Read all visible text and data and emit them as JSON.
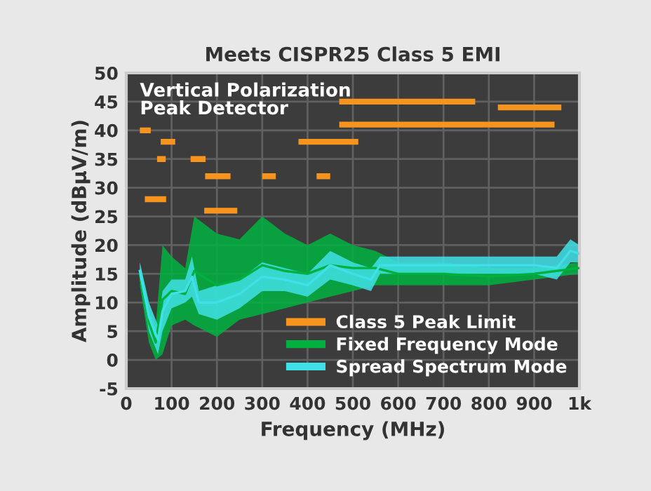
{
  "chart_data": {
    "type": "line",
    "title": "Meets CISPR25 Class 5 EMI",
    "xlabel": "Frequency (MHz)",
    "ylabel": "Amplitude (dBµV/m)",
    "annotations": [
      "Vertical Polarization\nPeak Detector"
    ],
    "xlim": [
      0,
      1000
    ],
    "ylim": [
      -5,
      50
    ],
    "xticks": [
      0,
      100,
      200,
      300,
      400,
      500,
      600,
      700,
      800,
      900,
      {
        "value": 1000,
        "label": "1k"
      }
    ],
    "yticks": [
      -5,
      0,
      5,
      10,
      15,
      20,
      25,
      30,
      35,
      40,
      45,
      50
    ],
    "grid": true,
    "legend": "bottom right",
    "series": [
      {
        "name": "Class 5 Peak Limit",
        "color": "#f7941d",
        "x": [
          30,
          54,
          null,
          41,
          88,
          null,
          68,
          87,
          null,
          76,
          108,
          null,
          142,
          175,
          null,
          174,
          230,
          null,
          172,
          245,
          null,
          300,
          330,
          null,
          380,
          512,
          null,
          420,
          450,
          null,
          470,
          770,
          null,
          470,
          945,
          null,
          820,
          960
        ],
        "values": [
          40,
          40,
          null,
          28,
          28,
          null,
          35,
          35,
          null,
          38,
          38,
          null,
          35,
          35,
          null,
          32,
          32,
          null,
          26,
          26,
          null,
          32,
          32,
          null,
          38,
          38,
          null,
          32,
          32,
          null,
          45,
          45,
          null,
          41,
          41,
          null,
          44,
          44
        ]
      },
      {
        "name": "Fixed Frequency Mode",
        "color": "#00b140",
        "x": [
          30,
          50,
          65,
          80,
          100,
          130,
          150,
          200,
          250,
          300,
          350,
          400,
          450,
          500,
          550,
          600,
          700,
          800,
          900,
          1000
        ],
        "lower": [
          13,
          3,
          0,
          1,
          6,
          7,
          6,
          4,
          7,
          8,
          9,
          10,
          11,
          12,
          13,
          13,
          13,
          13,
          14,
          15
        ],
        "upper": [
          17,
          10,
          6,
          20,
          18,
          16,
          25,
          22,
          21,
          25,
          22,
          20,
          22,
          20,
          19,
          17,
          17,
          16,
          16,
          17
        ],
        "values": [
          15,
          6.5,
          3,
          10.5,
          12,
          11.5,
          15.5,
          13,
          14,
          16.5,
          15.5,
          15,
          16.5,
          16,
          16,
          15,
          15,
          14.5,
          15,
          16
        ]
      },
      {
        "name": "Spread Spectrum Mode",
        "color": "#40e0e8",
        "x": [
          30,
          50,
          70,
          80,
          100,
          130,
          145,
          160,
          200,
          250,
          300,
          350,
          400,
          450,
          500,
          540,
          560,
          600,
          700,
          800,
          900,
          950,
          980,
          1000
        ],
        "lower": [
          14,
          5,
          1,
          5,
          9,
          10,
          11,
          8,
          7,
          9,
          12,
          12,
          11,
          14,
          13,
          12,
          15,
          15,
          15,
          15,
          15,
          14,
          17,
          17
        ],
        "upper": [
          17,
          10,
          6,
          12,
          14,
          14,
          18,
          12,
          13,
          14,
          17,
          16,
          15,
          19,
          17,
          16,
          18,
          18,
          18,
          18,
          18,
          18,
          21,
          20
        ],
        "values": [
          15.5,
          7.5,
          3.5,
          8.5,
          11.5,
          12,
          14.5,
          10,
          10,
          11.5,
          14.5,
          14,
          13,
          16.5,
          15,
          14,
          16.5,
          16.5,
          16.5,
          16.5,
          16.5,
          16,
          19,
          18.5
        ]
      }
    ]
  }
}
